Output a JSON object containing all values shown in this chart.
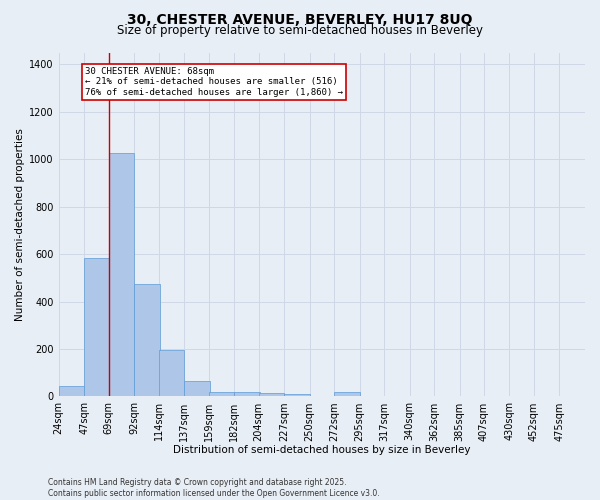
{
  "title_line1": "30, CHESTER AVENUE, BEVERLEY, HU17 8UQ",
  "title_line2": "Size of property relative to semi-detached houses in Beverley",
  "xlabel": "Distribution of semi-detached houses by size in Beverley",
  "ylabel": "Number of semi-detached properties",
  "footer_line1": "Contains HM Land Registry data © Crown copyright and database right 2025.",
  "footer_line2": "Contains public sector information licensed under the Open Government Licence v3.0.",
  "property_label": "30 CHESTER AVENUE: 68sqm",
  "annotation_line1": "← 21% of semi-detached houses are smaller (516)",
  "annotation_line2": "76% of semi-detached houses are larger (1,860) →",
  "bar_color": "#aec6e8",
  "bar_edge_color": "#5b9bd5",
  "grid_color": "#d0d8e8",
  "background_color": "#e8eef5",
  "vline_color": "#cc0000",
  "annotation_box_edge": "#cc0000",
  "bin_labels": [
    "24sqm",
    "47sqm",
    "69sqm",
    "92sqm",
    "114sqm",
    "137sqm",
    "159sqm",
    "182sqm",
    "204sqm",
    "227sqm",
    "250sqm",
    "272sqm",
    "295sqm",
    "317sqm",
    "340sqm",
    "362sqm",
    "385sqm",
    "407sqm",
    "430sqm",
    "452sqm",
    "475sqm"
  ],
  "bin_edges": [
    24,
    47,
    69,
    92,
    114,
    137,
    159,
    182,
    204,
    227,
    250,
    272,
    295,
    317,
    340,
    362,
    385,
    407,
    430,
    452,
    475
  ],
  "counts": [
    45,
    585,
    1025,
    475,
    195,
    65,
    20,
    18,
    15,
    10,
    0,
    20,
    0,
    0,
    0,
    0,
    0,
    0,
    0,
    0,
    0
  ],
  "vline_x": 69,
  "ylim": [
    0,
    1450
  ],
  "yticks": [
    0,
    200,
    400,
    600,
    800,
    1000,
    1200,
    1400
  ],
  "title1_fontsize": 10,
  "title2_fontsize": 8.5,
  "ylabel_fontsize": 7.5,
  "xlabel_fontsize": 7.5,
  "tick_fontsize": 7,
  "footer_fontsize": 5.5
}
